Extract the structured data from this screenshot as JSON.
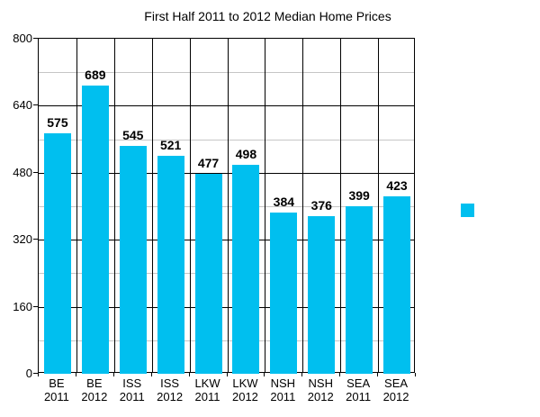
{
  "chart_data": {
    "type": "bar",
    "title": "First Half 2011 to 2012 Median Home Prices",
    "categories": [
      "BE 2011",
      "BE 2012",
      "ISS 2011",
      "ISS 2012",
      "LKW 2011",
      "LKW 2012",
      "NSH 2011",
      "NSH 2012",
      "SEA 2011",
      "SEA 2012"
    ],
    "category_lines": [
      [
        "BE",
        "2011"
      ],
      [
        "BE",
        "2012"
      ],
      [
        "ISS",
        "2011"
      ],
      [
        "ISS",
        "2012"
      ],
      [
        "LKW",
        "2011"
      ],
      [
        "LKW",
        "2012"
      ],
      [
        "NSH",
        "2011"
      ],
      [
        "NSH",
        "2012"
      ],
      [
        "SEA",
        "2011"
      ],
      [
        "SEA",
        "2012"
      ]
    ],
    "values": [
      575,
      689,
      545,
      521,
      477,
      498,
      384,
      376,
      399,
      423
    ],
    "xlabel": "",
    "ylabel": "",
    "ylim": [
      0,
      800
    ],
    "y_major_ticks": [
      0,
      160,
      320,
      480,
      640,
      800
    ],
    "y_minor_ticks": [
      80,
      240,
      400,
      560,
      720
    ],
    "grid": "on",
    "data_labels": "on",
    "legend_position": "right",
    "legend_label": "",
    "colors": {
      "bar": "#00bfef",
      "major_grid": "#000000",
      "minor_grid": "#c6c6c6",
      "text": "#000000",
      "background": "#ffffff"
    }
  }
}
